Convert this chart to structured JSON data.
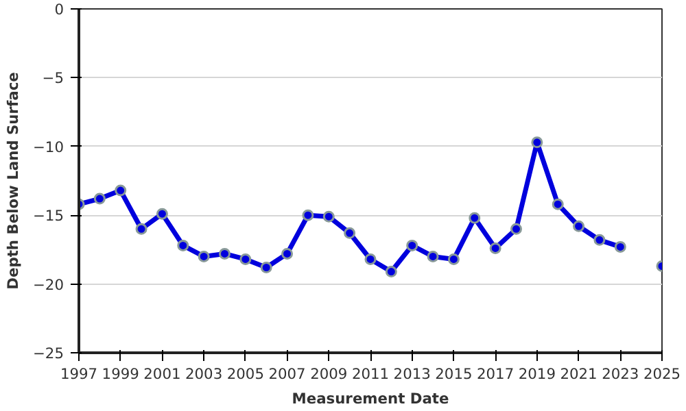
{
  "chart_data": {
    "type": "line",
    "xlabel": "Measurement Date",
    "ylabel": "Depth Below Land Surface",
    "x": [
      1997,
      1998,
      1999,
      2000,
      2001,
      2002,
      2003,
      2004,
      2005,
      2006,
      2007,
      2008,
      2009,
      2010,
      2011,
      2012,
      2013,
      2014,
      2015,
      2016,
      2017,
      2018,
      2019,
      2020,
      2021,
      2022,
      2023,
      2024,
      2025
    ],
    "series": [
      {
        "color": "#0000dd",
        "values": [
          -14.2,
          -13.8,
          -13.2,
          -16.0,
          -14.9,
          -17.2,
          -18.0,
          -17.8,
          -18.2,
          -18.8,
          -17.8,
          -15.0,
          -15.1,
          -16.3,
          -18.2,
          -19.1,
          -17.2,
          -18.0,
          -18.2,
          -15.2,
          -17.4,
          -16.0,
          -9.7,
          -14.2,
          -15.8,
          -16.8,
          -17.3,
          null,
          -18.7
        ]
      }
    ],
    "xlim": [
      1997,
      2025
    ],
    "xticks": [
      1997,
      1999,
      2001,
      2003,
      2005,
      2007,
      2009,
      2011,
      2013,
      2015,
      2017,
      2019,
      2021,
      2023,
      2025
    ],
    "ylim": [
      -25,
      0
    ],
    "yticks": [
      -25,
      -20,
      -15,
      -10,
      -5,
      0
    ],
    "grid": "y",
    "marker": "circle",
    "line_style": "solid"
  }
}
